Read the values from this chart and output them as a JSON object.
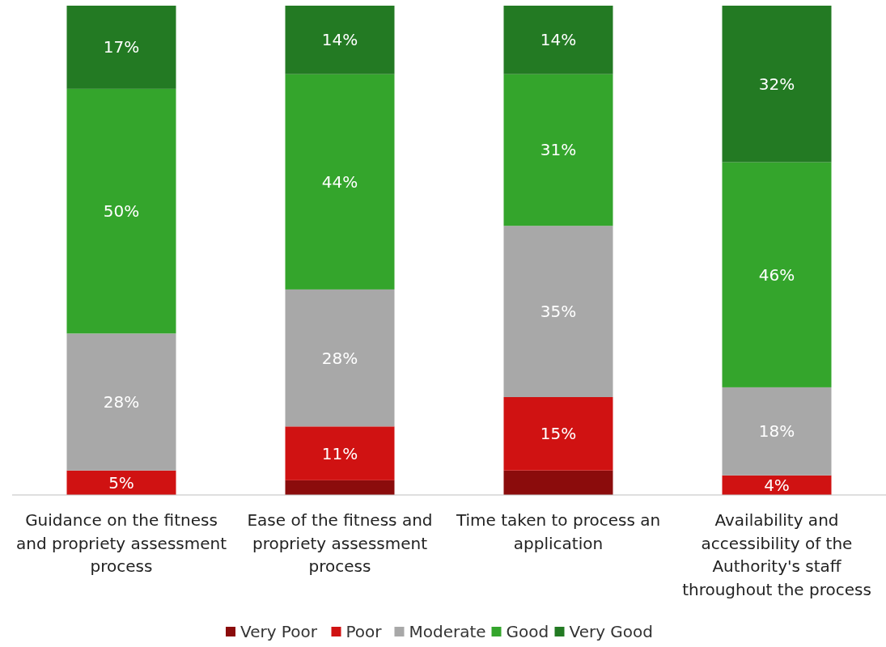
{
  "chart_data": {
    "type": "bar",
    "stacked": true,
    "categories": [
      "Guidance on the fitness and propriety assessment process",
      "Ease of the fitness and propriety assessment process",
      "Time taken to process an application",
      "Availability and accessibility of the Authority's staff throughout the process"
    ],
    "series": [
      {
        "name": "Very Poor",
        "color": "#8b0c0c",
        "values": [
          0,
          3,
          5,
          0
        ],
        "value_labels": [
          null,
          null,
          null,
          null
        ]
      },
      {
        "name": "Poor",
        "color": "#d01212",
        "values": [
          5,
          11,
          15,
          4
        ],
        "value_labels": [
          "5%",
          "11%",
          "15%",
          "4%"
        ]
      },
      {
        "name": "Moderate",
        "color": "#a8a8a8",
        "values": [
          28,
          28,
          35,
          18
        ],
        "value_labels": [
          "28%",
          "28%",
          "35%",
          "18%"
        ]
      },
      {
        "name": "Good",
        "color": "#34a52c",
        "values": [
          50,
          44,
          31,
          46
        ],
        "value_labels": [
          "50%",
          "44%",
          "31%",
          "46%"
        ]
      },
      {
        "name": "Very Good",
        "color": "#237a23",
        "values": [
          17,
          14,
          14,
          32
        ],
        "value_labels": [
          "17%",
          "14%",
          "14%",
          "32%"
        ]
      }
    ],
    "ylim": [
      0,
      100
    ],
    "tick_labels": "x",
    "legend": "bottom"
  }
}
